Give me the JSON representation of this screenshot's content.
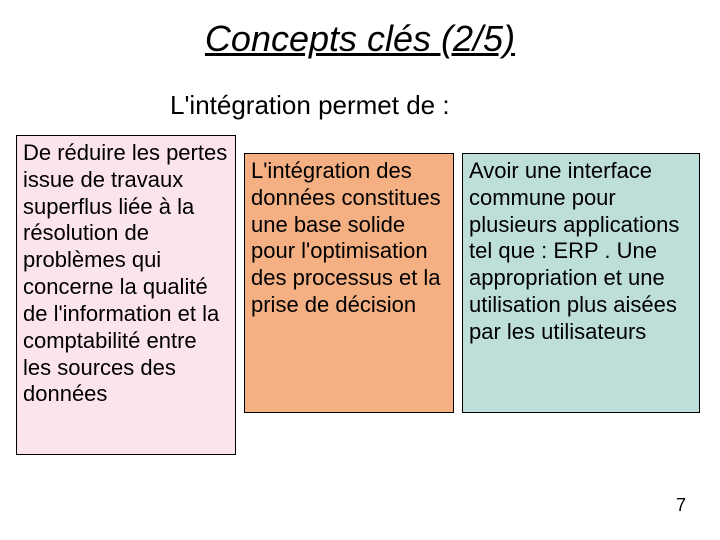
{
  "title": "Concepts clés (2/5)",
  "subtitle": "L'intégration permet de :",
  "page_number": "7",
  "boxes": [
    {
      "text": "De réduire les pertes issue de travaux superflus liée à la résolution de problèmes qui concerne la qualité de l'information et la comptabilité entre les sources des données",
      "bg": "#fce4ec"
    },
    {
      "text": "L'intégration des données constitues une base solide pour l'optimisation des processus et la prise de décision",
      "bg": "#f4b083"
    },
    {
      "text": "Avoir une interface commune pour plusieurs applications tel que : ERP . Une appropriation et une utilisation plus aisées par les utilisateurs",
      "bg": "#bedfd9"
    }
  ]
}
